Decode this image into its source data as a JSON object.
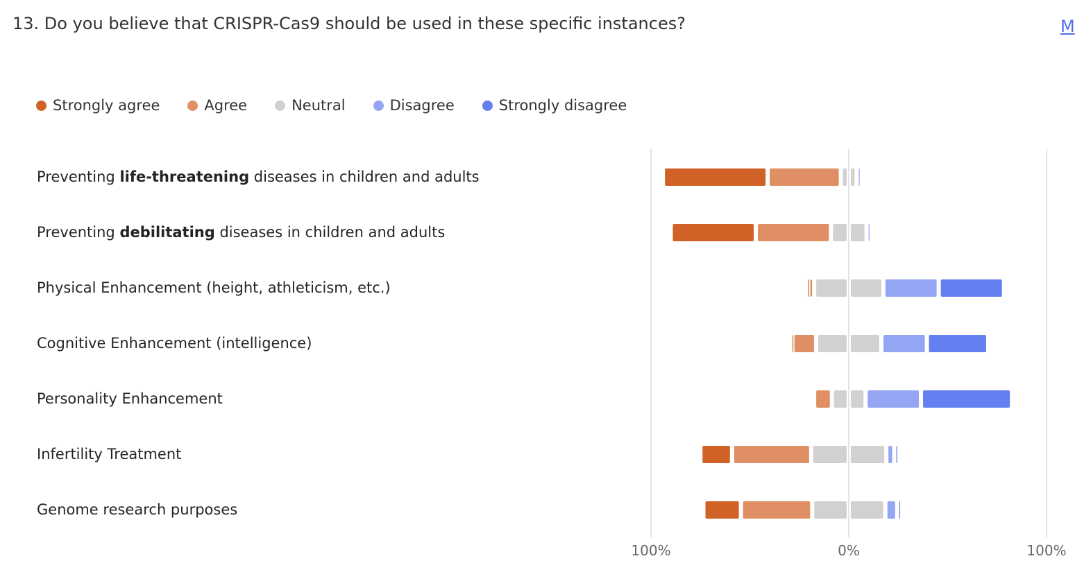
{
  "title": "13. Do you believe that CRISPR-Cas9 should be used in these specific instances?",
  "more_link": "M",
  "chart_data": {
    "type": "bar",
    "subtype": "diverging-stacked-horizontal",
    "legend": [
      {
        "name": "Strongly agree",
        "color": "#d06228"
      },
      {
        "name": "Agree",
        "color": "#e08e64"
      },
      {
        "name": "Neutral",
        "color": "#d2d1cf"
      },
      {
        "name": "Disagree",
        "color": "#93a5f3"
      },
      {
        "name": "Strongly disagree",
        "color": "#647ff0"
      }
    ],
    "legend_position": "top-left",
    "xlim": [
      -100,
      100
    ],
    "x_tick_labels": [
      "100%",
      "0%",
      "100%"
    ],
    "categories": [
      {
        "pre": "Preventing ",
        "bold": "life-threatening",
        "post": " diseases in children and adults"
      },
      {
        "pre": "Preventing ",
        "bold": "debilitating",
        "post": " diseases in children and adults"
      },
      {
        "pre": "Physical Enhancement (height, athleticism, etc.)",
        "bold": "",
        "post": ""
      },
      {
        "pre": "Cognitive Enhancement (intelligence)",
        "bold": "",
        "post": ""
      },
      {
        "pre": "Personality Enhancement",
        "bold": "",
        "post": ""
      },
      {
        "pre": "Infertility Treatment",
        "bold": "",
        "post": ""
      },
      {
        "pre": "Genome research purposes",
        "bold": "",
        "post": ""
      }
    ],
    "series": [
      {
        "name": "Strongly agree",
        "values": [
          53,
          43,
          1,
          1,
          0,
          16,
          19
        ]
      },
      {
        "name": "Agree",
        "values": [
          37,
          38,
          3,
          12,
          9,
          40,
          36
        ]
      },
      {
        "name": "Neutral",
        "values": [
          8,
          18,
          35,
          33,
          17,
          38,
          37
        ]
      },
      {
        "name": "Disagree",
        "values": [
          2,
          1,
          28,
          23,
          28,
          4,
          6
        ]
      },
      {
        "name": "Strongly disagree",
        "values": [
          0,
          0,
          33,
          31,
          46,
          2,
          2
        ]
      }
    ]
  }
}
